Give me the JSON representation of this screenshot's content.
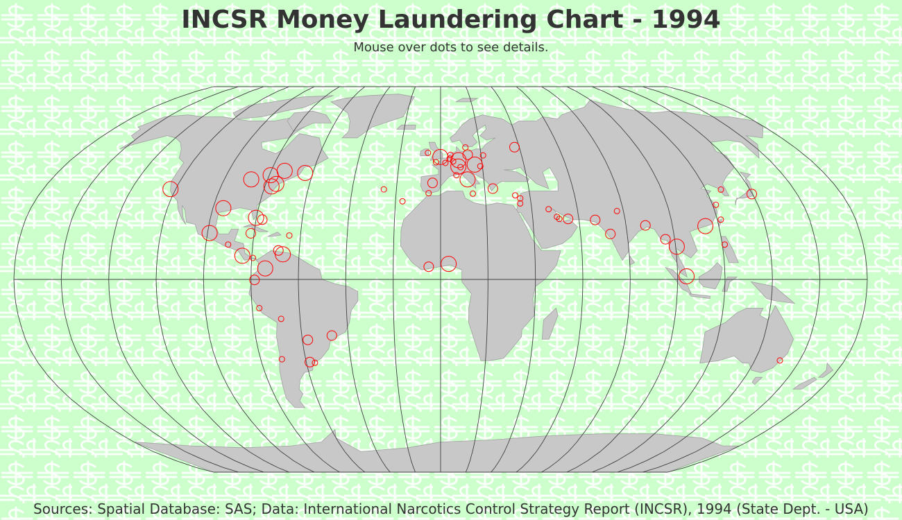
{
  "title": "INCSR Money Laundering Chart - 1994",
  "subtitle": "Mouse over dots to see details.",
  "source": "Sources:  Spatial Database: SAS;  Data: International Narcotics Control Strategy Report (INCSR), 1994 (State Dept. - USA)",
  "colors": {
    "background": "#ccffcc",
    "pattern": "#ffffff",
    "land": "#c8c8c8",
    "land_border": "#a0a0a0",
    "graticule": "#404040",
    "marker": "#ff0000"
  },
  "map": {
    "projection": "robinson",
    "meridian_step_deg": 20,
    "equator_shown": true,
    "markers": [
      {
        "lon": -122.4,
        "lat": 37.8,
        "size": "large"
      },
      {
        "lon": -99.1,
        "lat": 19.4,
        "size": "large"
      },
      {
        "lon": -87.6,
        "lat": 41.9,
        "size": "large"
      },
      {
        "lon": -95.4,
        "lat": 29.8,
        "size": "large"
      },
      {
        "lon": -80.2,
        "lat": 25.8,
        "size": "large"
      },
      {
        "lon": -79.4,
        "lat": 43.7,
        "size": "large"
      },
      {
        "lon": -75.2,
        "lat": 40.0,
        "size": "large"
      },
      {
        "lon": -73.6,
        "lat": 45.5,
        "size": "large"
      },
      {
        "lon": -77.0,
        "lat": 38.9,
        "size": "large"
      },
      {
        "lon": -63.6,
        "lat": 44.6,
        "size": "large"
      },
      {
        "lon": -77.3,
        "lat": 25.0,
        "size": "medium"
      },
      {
        "lon": -81.4,
        "lat": 19.3,
        "size": "medium"
      },
      {
        "lon": -90.5,
        "lat": 14.6,
        "size": "small"
      },
      {
        "lon": -64.8,
        "lat": 18.4,
        "size": "small"
      },
      {
        "lon": -84.0,
        "lat": 9.9,
        "size": "large"
      },
      {
        "lon": -79.5,
        "lat": 9.0,
        "size": "small"
      },
      {
        "lon": -68.9,
        "lat": 12.1,
        "size": "medium"
      },
      {
        "lon": -66.9,
        "lat": 10.5,
        "size": "large"
      },
      {
        "lon": -74.1,
        "lat": 4.6,
        "size": "large"
      },
      {
        "lon": -78.5,
        "lat": -0.2,
        "size": "medium"
      },
      {
        "lon": -77.0,
        "lat": -12.0,
        "size": "small"
      },
      {
        "lon": -68.1,
        "lat": -16.5,
        "size": "small"
      },
      {
        "lon": -57.6,
        "lat": -25.3,
        "size": "medium"
      },
      {
        "lon": -47.0,
        "lat": -23.5,
        "size": "medium"
      },
      {
        "lon": -70.6,
        "lat": -33.4,
        "size": "small"
      },
      {
        "lon": -58.4,
        "lat": -34.6,
        "size": "medium"
      },
      {
        "lon": -56.2,
        "lat": -34.9,
        "size": "small"
      },
      {
        "lon": -25.7,
        "lat": 37.7,
        "size": "small"
      },
      {
        "lon": -16.9,
        "lat": 32.7,
        "size": "small"
      },
      {
        "lon": -5.4,
        "lat": 36.1,
        "size": "small"
      },
      {
        "lon": -3.7,
        "lat": 40.4,
        "size": "medium"
      },
      {
        "lon": -6.3,
        "lat": 53.3,
        "size": "small"
      },
      {
        "lon": -0.1,
        "lat": 51.5,
        "size": "large"
      },
      {
        "lon": -2.2,
        "lat": 49.2,
        "size": "small"
      },
      {
        "lon": 2.3,
        "lat": 48.9,
        "size": "small"
      },
      {
        "lon": 4.9,
        "lat": 52.4,
        "size": "small"
      },
      {
        "lon": 4.4,
        "lat": 50.8,
        "size": "small"
      },
      {
        "lon": 6.1,
        "lat": 49.6,
        "size": "small"
      },
      {
        "lon": 8.7,
        "lat": 50.1,
        "size": "large"
      },
      {
        "lon": 12.6,
        "lat": 55.7,
        "size": "small"
      },
      {
        "lon": 13.4,
        "lat": 52.5,
        "size": "medium"
      },
      {
        "lon": 8.5,
        "lat": 47.4,
        "size": "large"
      },
      {
        "lon": 9.5,
        "lat": 47.1,
        "size": "small"
      },
      {
        "lon": 7.4,
        "lat": 43.7,
        "size": "small"
      },
      {
        "lon": 16.4,
        "lat": 48.2,
        "size": "large"
      },
      {
        "lon": 12.5,
        "lat": 41.9,
        "size": "large"
      },
      {
        "lon": 14.5,
        "lat": 35.9,
        "size": "small"
      },
      {
        "lon": 21.0,
        "lat": 52.2,
        "size": "small"
      },
      {
        "lon": 19.0,
        "lat": 47.5,
        "size": "small"
      },
      {
        "lon": 23.7,
        "lat": 38.0,
        "size": "medium"
      },
      {
        "lon": 37.6,
        "lat": 55.8,
        "size": "medium"
      },
      {
        "lon": 33.4,
        "lat": 35.2,
        "size": "small"
      },
      {
        "lon": 35.2,
        "lat": 31.8,
        "size": "small"
      },
      {
        "lon": 35.5,
        "lat": 33.9,
        "size": "small"
      },
      {
        "lon": 3.4,
        "lat": 6.5,
        "size": "large"
      },
      {
        "lon": -5.0,
        "lat": 5.3,
        "size": "medium"
      },
      {
        "lon": 47.4,
        "lat": 29.4,
        "size": "small"
      },
      {
        "lon": 50.6,
        "lat": 26.2,
        "size": "small"
      },
      {
        "lon": 55.3,
        "lat": 25.3,
        "size": "medium"
      },
      {
        "lon": 51.5,
        "lat": 25.3,
        "size": "small"
      },
      {
        "lon": 67.0,
        "lat": 24.9,
        "size": "medium"
      },
      {
        "lon": 72.8,
        "lat": 19.0,
        "size": "medium"
      },
      {
        "lon": 77.2,
        "lat": 28.6,
        "size": "small"
      },
      {
        "lon": 88.4,
        "lat": 22.6,
        "size": "medium"
      },
      {
        "lon": 96.1,
        "lat": 16.8,
        "size": "medium"
      },
      {
        "lon": 100.5,
        "lat": 13.7,
        "size": "large"
      },
      {
        "lon": 103.8,
        "lat": 1.3,
        "size": "large"
      },
      {
        "lon": 114.2,
        "lat": 22.3,
        "size": "large"
      },
      {
        "lon": 121.5,
        "lat": 25.0,
        "size": "small"
      },
      {
        "lon": 121.0,
        "lat": 14.6,
        "size": "small"
      },
      {
        "lon": 126.9,
        "lat": 37.6,
        "size": "small"
      },
      {
        "lon": 121.5,
        "lat": 31.2,
        "size": "small"
      },
      {
        "lon": 139.7,
        "lat": 35.7,
        "size": "medium"
      },
      {
        "lon": 151.2,
        "lat": -33.9,
        "size": "small"
      }
    ]
  }
}
